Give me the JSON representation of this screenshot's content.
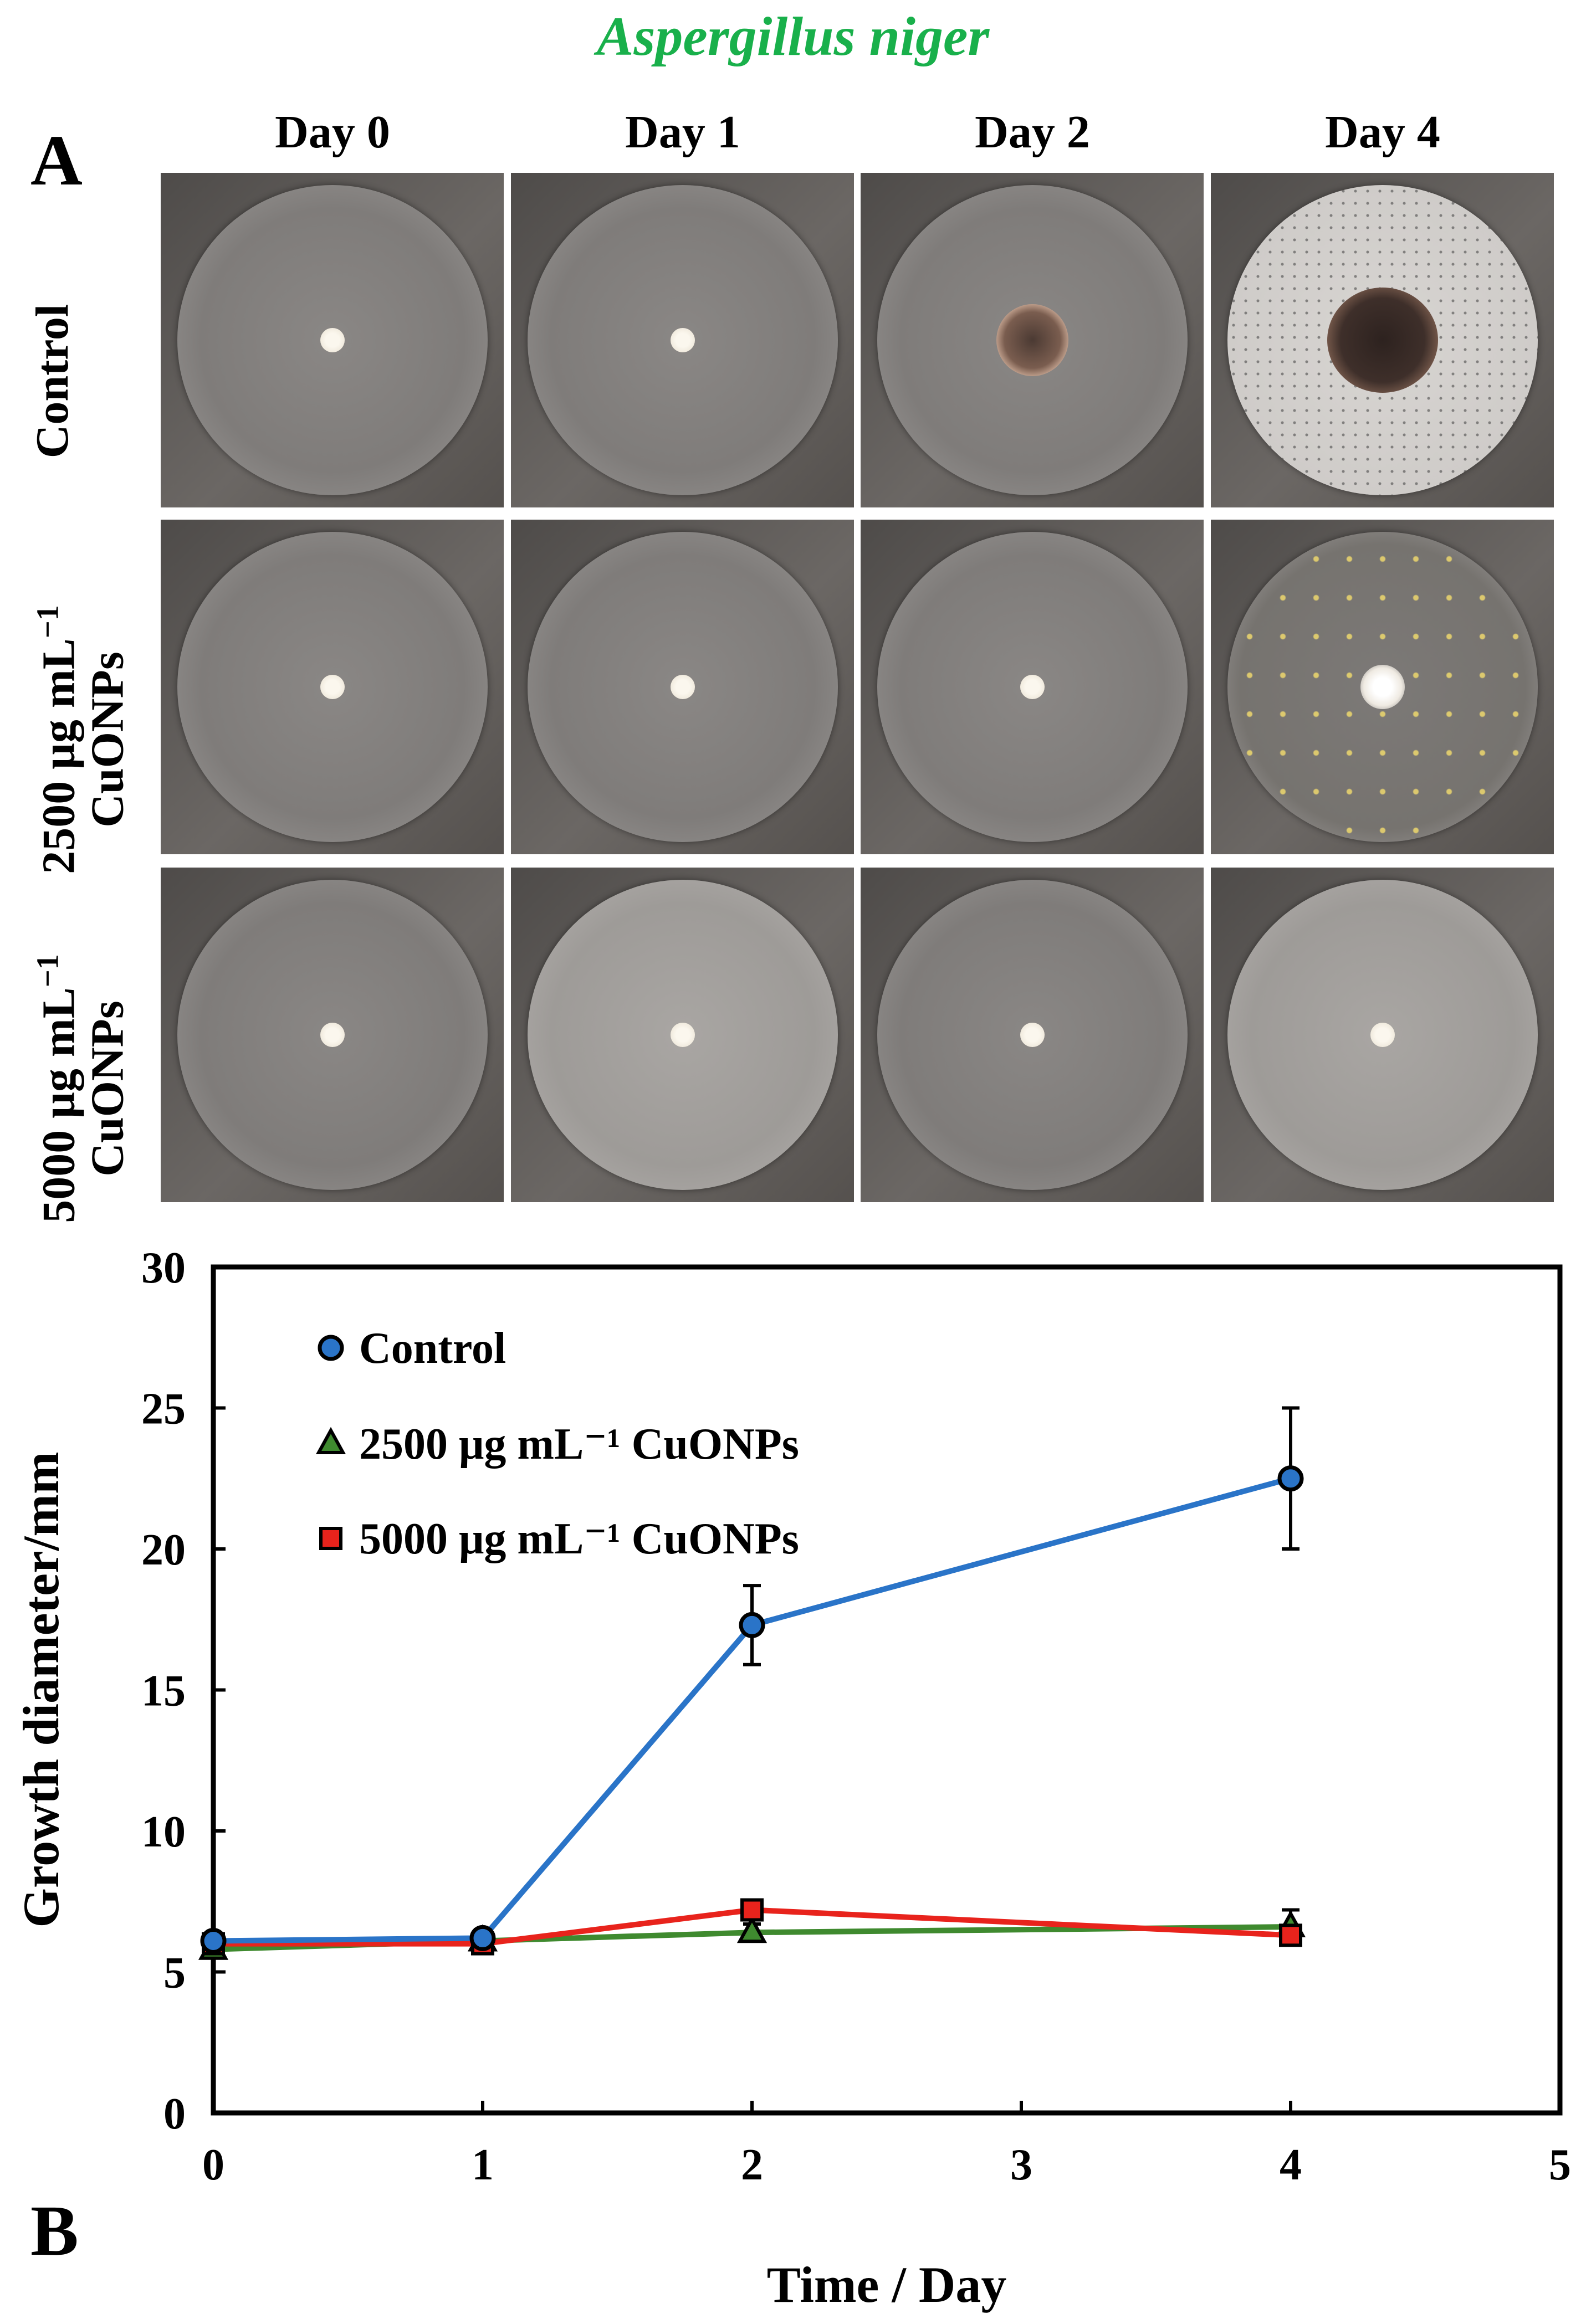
{
  "figure": {
    "title": "Aspergillus niger",
    "panel_a_label": "A",
    "panel_b_label": "B"
  },
  "panel_a": {
    "columns": [
      "Day 0",
      "Day 1",
      "Day 2",
      "Day 4"
    ],
    "rows": [
      {
        "line1": "Control",
        "line2": ""
      },
      {
        "line1": "2500 μg mL",
        "sup": "−1",
        "line2": "CuONPs"
      },
      {
        "line1": "5000 μg mL",
        "sup": "−1",
        "line2": "CuONPs"
      }
    ]
  },
  "chart_data": {
    "type": "line",
    "title": "",
    "xlabel": "Time  / Day",
    "ylabel": "Growth diameter/mm",
    "xlim": [
      0,
      5
    ],
    "ylim": [
      0,
      30
    ],
    "xticks": [
      0,
      1,
      2,
      3,
      4,
      5
    ],
    "yticks": [
      0,
      5,
      10,
      15,
      20,
      25,
      30
    ],
    "grid": false,
    "legend_position": "top-left",
    "x": [
      0,
      1,
      2,
      4
    ],
    "series": [
      {
        "name": "Control",
        "color": "#2a74c8",
        "marker": "circle",
        "values": [
          6.1,
          6.2,
          17.3,
          22.5
        ],
        "errors": [
          0.2,
          0.3,
          1.4,
          2.5
        ]
      },
      {
        "name": "2500 μg mL⁻¹ CuONPs",
        "color": "#3f8a2f",
        "marker": "triangle",
        "values": [
          5.8,
          6.1,
          6.4,
          6.6
        ],
        "errors": [
          0.2,
          0.2,
          0.3,
          0.6
        ]
      },
      {
        "name": "5000 μg mL⁻¹ CuONPs",
        "color": "#e8231c",
        "marker": "square",
        "values": [
          6.0,
          6.0,
          7.2,
          6.3
        ],
        "errors": [
          0.2,
          0.2,
          0.3,
          0.2
        ]
      }
    ]
  }
}
